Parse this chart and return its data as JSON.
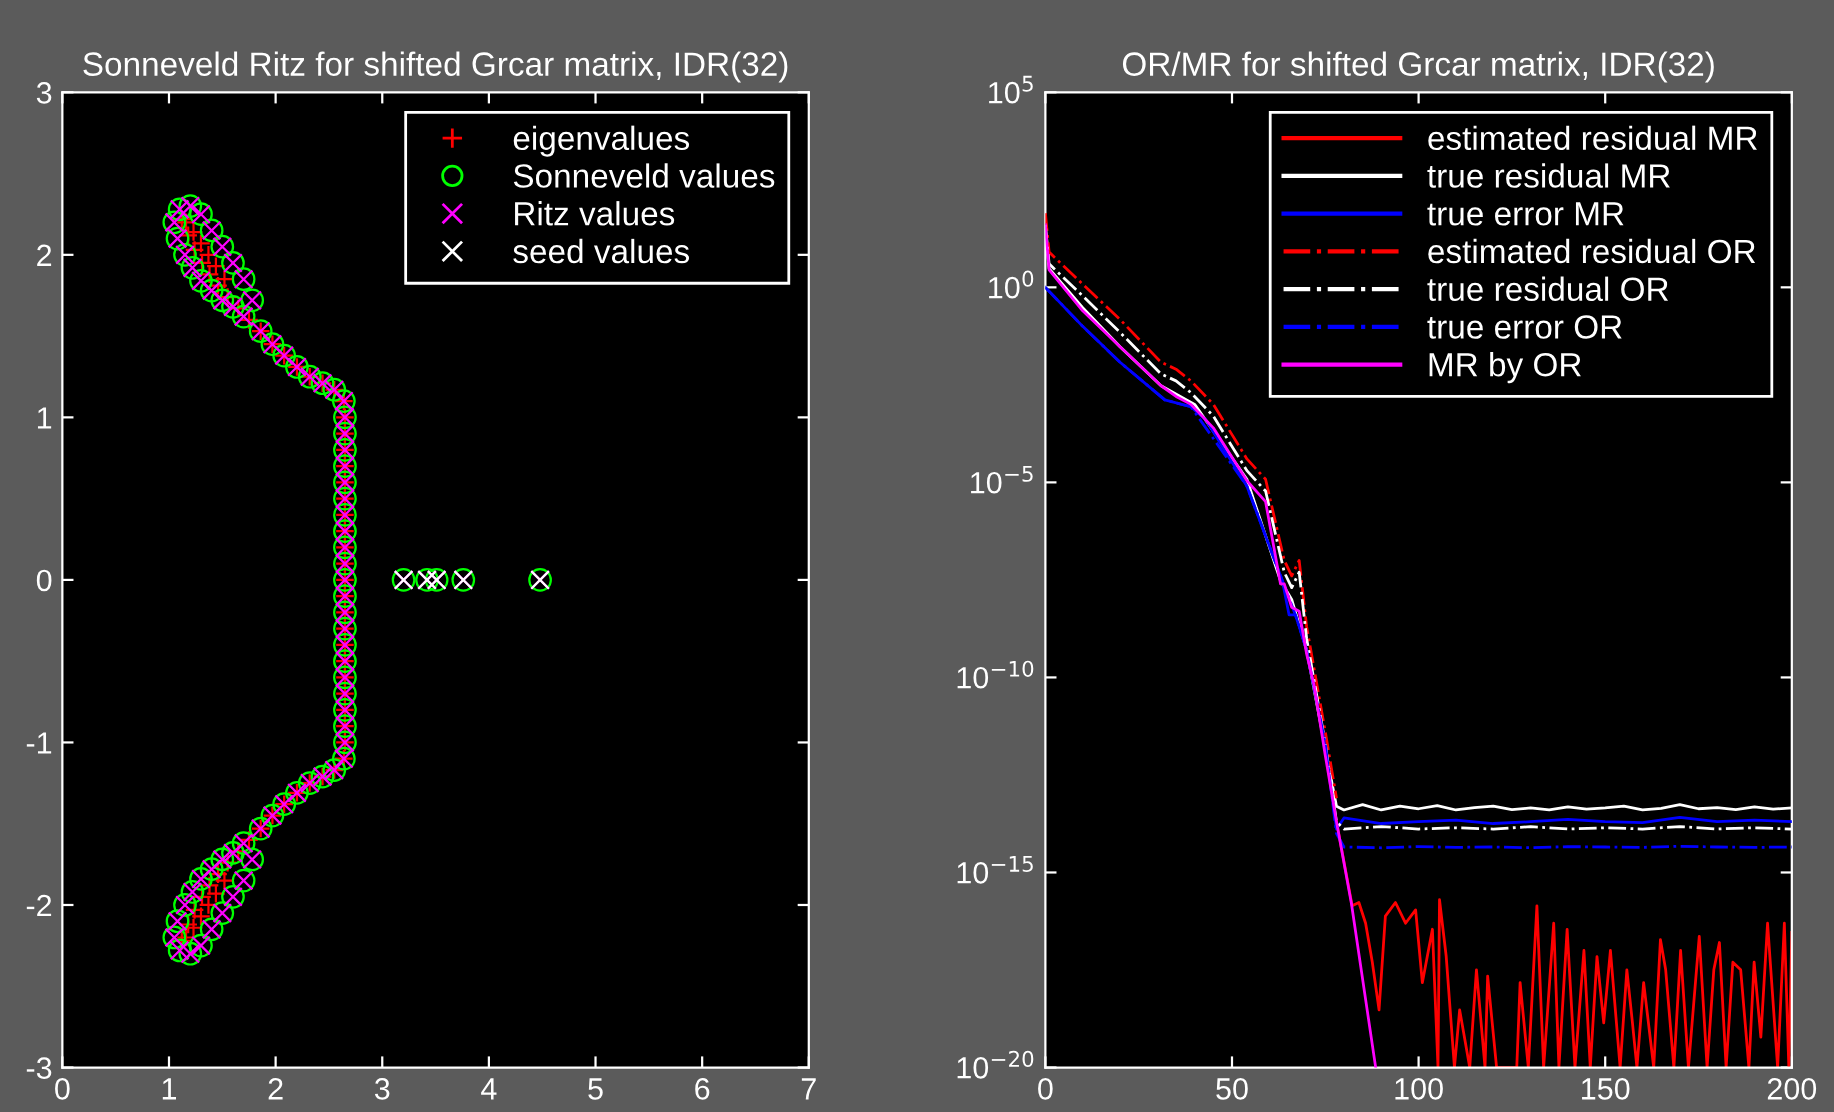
{
  "chart_data": [
    {
      "type": "scatter",
      "title": "Sonneveld Ritz for shifted Grcar matrix, IDR(32)",
      "xlim": [
        0,
        7
      ],
      "ylim": [
        -3,
        3
      ],
      "xticks": [
        0,
        1,
        2,
        3,
        4,
        5,
        6,
        7
      ],
      "yticks": [
        -3,
        -2,
        -1,
        0,
        1,
        2,
        3
      ],
      "grid": false,
      "legend": "top right",
      "series": [
        {
          "name": "eigenvalues",
          "color": "#ff0000",
          "marker": "plus",
          "x": [
            1.12,
            1.18,
            1.24,
            1.31,
            1.38,
            1.46,
            1.55,
            1.65,
            1.16,
            1.23,
            1.3,
            1.37,
            1.44,
            1.52,
            1.75,
            1.86,
            1.97,
            2.08,
            2.2,
            2.32,
            2.44,
            2.55,
            2.64,
            2.65,
            2.65,
            2.65,
            2.65,
            2.65,
            2.65,
            2.65,
            2.65,
            2.65,
            2.65,
            2.65,
            2.65,
            2.65,
            2.65,
            2.65,
            2.65,
            2.65,
            2.65,
            2.65,
            2.65,
            2.65,
            2.64,
            2.55,
            2.44,
            2.32,
            2.2,
            2.08,
            1.97,
            1.86,
            1.75,
            1.52,
            1.44,
            1.37,
            1.3,
            1.23,
            1.16,
            1.65,
            1.55,
            1.46,
            1.38,
            1.31,
            1.24,
            1.18,
            1.12
          ],
          "values": [
            2.22,
            2.12,
            2.03,
            1.95,
            1.88,
            1.81,
            1.74,
            1.67,
            2.2,
            2.14,
            2.07,
            2.0,
            1.93,
            1.85,
            1.6,
            1.53,
            1.45,
            1.38,
            1.31,
            1.25,
            1.21,
            1.17,
            1.1,
            1.0,
            0.9,
            0.8,
            0.7,
            0.6,
            0.5,
            0.4,
            0.3,
            0.2,
            0.1,
            0.0,
            -0.1,
            -0.2,
            -0.3,
            -0.4,
            -0.5,
            -0.6,
            -0.7,
            -0.8,
            -0.9,
            -1.0,
            -1.1,
            -1.17,
            -1.21,
            -1.25,
            -1.31,
            -1.38,
            -1.45,
            -1.53,
            -1.6,
            -1.85,
            -1.93,
            -2.0,
            -2.07,
            -2.14,
            -2.2,
            -1.67,
            -1.74,
            -1.81,
            -1.88,
            -1.95,
            -2.03,
            -2.12,
            -2.22
          ]
        },
        {
          "name": "Sonneveld values",
          "color": "#00ff00",
          "marker": "circle",
          "x": [
            1.1,
            1.05,
            1.08,
            1.15,
            1.22,
            1.3,
            1.4,
            1.5,
            1.6,
            1.7,
            1.2,
            1.3,
            1.4,
            1.5,
            1.6,
            1.7,
            1.78,
            1.86,
            1.97,
            2.08,
            2.2,
            2.32,
            2.44,
            2.55,
            2.64,
            2.65,
            2.65,
            2.65,
            2.65,
            2.65,
            2.65,
            2.65,
            2.65,
            2.65,
            2.65,
            2.65,
            2.65,
            2.65,
            2.65,
            2.65,
            2.65,
            2.65,
            2.65,
            2.65,
            2.65,
            2.65,
            2.64,
            2.55,
            2.44,
            2.32,
            2.2,
            2.08,
            1.97,
            1.86,
            1.78,
            1.7,
            1.6,
            1.5,
            1.4,
            1.3,
            1.2,
            1.7,
            1.6,
            1.5,
            1.4,
            1.3,
            1.22,
            1.15,
            1.08,
            1.05,
            1.1,
            3.2,
            3.42,
            3.51,
            3.76,
            4.48
          ],
          "values": [
            2.28,
            2.2,
            2.1,
            2.0,
            1.92,
            1.84,
            1.78,
            1.72,
            1.68,
            1.62,
            2.3,
            2.25,
            2.15,
            2.05,
            1.95,
            1.85,
            1.72,
            1.53,
            1.45,
            1.38,
            1.31,
            1.25,
            1.21,
            1.17,
            1.1,
            1.0,
            0.9,
            0.8,
            0.7,
            0.6,
            0.5,
            0.4,
            0.3,
            0.2,
            0.1,
            0.0,
            -0.1,
            -0.2,
            -0.3,
            -0.4,
            -0.5,
            -0.6,
            -0.7,
            -0.8,
            -0.9,
            -1.0,
            -1.1,
            -1.17,
            -1.21,
            -1.25,
            -1.31,
            -1.38,
            -1.45,
            -1.53,
            -1.72,
            -1.85,
            -1.95,
            -2.05,
            -2.15,
            -2.25,
            -2.3,
            -1.62,
            -1.68,
            -1.72,
            -1.78,
            -1.84,
            -1.92,
            -2.0,
            -2.1,
            -2.2,
            -2.28,
            0,
            0,
            0,
            0,
            0
          ]
        },
        {
          "name": "Ritz values",
          "color": "#ff00ff",
          "marker": "cross",
          "x": [
            1.1,
            1.05,
            1.08,
            1.15,
            1.22,
            1.3,
            1.4,
            1.5,
            1.6,
            1.7,
            1.2,
            1.3,
            1.4,
            1.5,
            1.6,
            1.7,
            1.78,
            1.86,
            1.97,
            2.08,
            2.2,
            2.32,
            2.44,
            2.55,
            2.64,
            2.65,
            2.65,
            2.65,
            2.65,
            2.65,
            2.65,
            2.65,
            2.65,
            2.65,
            2.65,
            2.65,
            2.65,
            2.65,
            2.65,
            2.65,
            2.65,
            2.65,
            2.65,
            2.65,
            2.65,
            2.65,
            2.64,
            2.55,
            2.44,
            2.32,
            2.2,
            2.08,
            1.97,
            1.86,
            1.78,
            1.7,
            1.6,
            1.5,
            1.4,
            1.3,
            1.2,
            1.7,
            1.6,
            1.5,
            1.4,
            1.3,
            1.22,
            1.15,
            1.08,
            1.05,
            1.1,
            3.2,
            3.42,
            3.51,
            3.76,
            4.48
          ],
          "values": [
            2.28,
            2.2,
            2.1,
            2.0,
            1.92,
            1.84,
            1.78,
            1.72,
            1.68,
            1.62,
            2.3,
            2.25,
            2.15,
            2.05,
            1.95,
            1.85,
            1.72,
            1.53,
            1.45,
            1.38,
            1.31,
            1.25,
            1.21,
            1.17,
            1.1,
            1.0,
            0.9,
            0.8,
            0.7,
            0.6,
            0.5,
            0.4,
            0.3,
            0.2,
            0.1,
            0.0,
            -0.1,
            -0.2,
            -0.3,
            -0.4,
            -0.5,
            -0.6,
            -0.7,
            -0.8,
            -0.9,
            -1.0,
            -1.1,
            -1.17,
            -1.21,
            -1.25,
            -1.31,
            -1.38,
            -1.45,
            -1.53,
            -1.72,
            -1.85,
            -1.95,
            -2.05,
            -2.15,
            -2.25,
            -2.3,
            -1.62,
            -1.68,
            -1.72,
            -1.78,
            -1.84,
            -1.92,
            -2.0,
            -2.1,
            -2.2,
            -2.28,
            0,
            0,
            0,
            0,
            0
          ]
        },
        {
          "name": "seed values",
          "color": "#ffffff",
          "marker": "cross",
          "x": [
            3.2,
            3.42,
            3.51,
            3.76,
            4.48
          ],
          "values": [
            0,
            0,
            0,
            0,
            0
          ]
        }
      ]
    },
    {
      "type": "line",
      "title": "OR/MR for shifted Grcar matrix, IDR(32)",
      "log": "y",
      "xlim": [
        0,
        200
      ],
      "ylim": [
        1e-20,
        100000.0
      ],
      "xticks": [
        0,
        50,
        100,
        150,
        200
      ],
      "yticks": [
        {
          "value": 100000.0,
          "label": "10$^{5}$"
        },
        {
          "value": 1,
          "label": "10$^{0}$"
        },
        {
          "value": 1e-05,
          "label": "10$^{−5}$"
        },
        {
          "value": 1e-10,
          "label": "10$^{−10}$"
        },
        {
          "value": 1e-15,
          "label": "10$^{−15}$"
        },
        {
          "value": 1e-20,
          "label": "10$^{−20}$"
        }
      ],
      "grid": false,
      "legend": "top right",
      "marker": "none",
      "series": [
        {
          "name": "estimated residual MR",
          "color": "#ff0000",
          "line_style": "solid",
          "x": [
            78,
            82.2,
            84,
            85.8,
            87.6,
            89.4,
            91.1,
            93.8,
            96.5,
            99.2,
            101,
            103.7,
            105.2,
            105.6,
            107.4,
            109.6,
            111,
            113.7,
            115.5,
            117.8,
            118.5,
            120.9,
            123.6,
            126.3,
            127.2,
            129.4,
            131.7,
            133.5,
            136.2,
            137.6,
            139.8,
            141.9,
            144.3,
            146,
            147.8,
            149.6,
            151.4,
            154,
            155.8,
            157.3,
            158.5,
            160.3,
            163,
            164.8,
            166.2,
            168.4,
            170.2,
            172.3,
            175.2,
            177.3,
            179.1,
            180.6,
            182.4,
            184.2,
            186.3,
            188.5,
            189.9,
            191.7,
            193.5,
            196.2,
            198,
            199.2,
            200
          ],
          "values": [
            2e-14,
            1.4e-16,
            1.7e-16,
            5e-17,
            5e-18,
            3e-19,
            7.6e-17,
            1.7e-16,
            5e-17,
            1.1e-16,
            1.5e-18,
            3.5e-17,
            1e-20,
            2e-16,
            7e-18,
            1e-20,
            3e-19,
            1e-20,
            3.2e-18,
            1e-20,
            2.2e-18,
            1e-20,
            1e-20,
            1e-20,
            1.5e-18,
            1e-20,
            1.4e-16,
            1e-20,
            5e-17,
            1e-20,
            3.5e-17,
            1e-20,
            1e-17,
            1e-20,
            7e-18,
            1.4e-19,
            1e-17,
            1e-20,
            3.2e-18,
            1.4e-19,
            1e-20,
            1.5e-18,
            1e-20,
            1.9e-17,
            3.2e-18,
            1e-20,
            1e-17,
            1e-20,
            2.3e-17,
            1e-20,
            3.2e-18,
            1.6e-17,
            1e-20,
            5e-18,
            3.2e-18,
            1e-20,
            5e-18,
            6e-20,
            5e-17,
            1e-20,
            5e-17,
            1e-20,
            2.9e-17
          ]
        },
        {
          "name": "true residual MR",
          "color": "#ffffff",
          "line_style": "solid",
          "x": [
            0,
            1,
            10,
            20,
            31,
            40,
            54,
            63,
            66,
            70,
            75,
            78,
            80,
            85,
            90,
            95,
            100,
            105,
            110,
            115,
            120,
            125,
            130,
            135,
            140,
            145,
            150,
            155,
            160,
            165,
            170,
            175,
            180,
            185,
            190,
            195,
            200
          ],
          "values": [
            30,
            3,
            0.3,
            0.03,
            0.003,
            0.001,
            1.2e-05,
            3e-08,
            1e-08,
            5e-10,
            1.5e-12,
            5e-14,
            4e-14,
            5.5e-14,
            4e-14,
            5e-14,
            4.3e-14,
            5.2e-14,
            4e-14,
            4.6e-14,
            5e-14,
            4.1e-14,
            4.5e-14,
            4e-14,
            4.8e-14,
            4.2e-14,
            4.5e-14,
            5e-14,
            4e-14,
            4.4e-14,
            5.5e-14,
            4.3e-14,
            4.6e-14,
            4.1e-14,
            4.8e-14,
            4.2e-14,
            4.5e-14
          ]
        },
        {
          "name": "true error MR",
          "color": "#0000ff",
          "line_style": "solid",
          "x": [
            0,
            10,
            20,
            32,
            39,
            43,
            54,
            63.5,
            65.3,
            67,
            70,
            75,
            78,
            80,
            90,
            100,
            110,
            120,
            130,
            140,
            150,
            160,
            170,
            180,
            190,
            200
          ],
          "values": [
            1,
            0.1,
            0.012,
            0.0013,
            0.00087,
            0.0004,
            8e-06,
            3e-08,
            4e-09,
            4e-09,
            5e-10,
            2e-12,
            1.3e-14,
            2.5e-14,
            1.8e-14,
            2e-14,
            2.2e-14,
            1.8e-14,
            2e-14,
            2.3e-14,
            2e-14,
            1.9e-14,
            2.6e-14,
            2e-14,
            2.2e-14,
            2e-14
          ]
        },
        {
          "name": "estimated residual OR",
          "color": "#ff0000",
          "line_style": "dashdot",
          "x": [
            0,
            1,
            10,
            20,
            31,
            35,
            39,
            45,
            54,
            59,
            64,
            66,
            68,
            70,
            75,
            78
          ],
          "values": [
            80,
            8,
            1.2,
            0.15,
            0.012,
            0.008,
            0.004,
            0.001,
            4e-05,
            1.2e-05,
            1e-07,
            4e-08,
            1e-07,
            2e-09,
            4e-12,
            8e-14
          ]
        },
        {
          "name": "true residual OR",
          "color": "#ffffff",
          "line_style": "dashdot",
          "x": [
            0,
            1,
            10,
            20,
            31,
            35,
            39,
            45,
            54,
            59,
            64,
            66,
            68,
            70,
            75,
            78,
            80,
            90,
            100,
            110,
            120,
            130,
            140,
            150,
            160,
            170,
            180,
            190,
            200
          ],
          "values": [
            40,
            4,
            0.6,
            0.07,
            0.006,
            0.004,
            0.002,
            0.0005,
            2e-05,
            6e-06,
            5e-08,
            2e-08,
            5e-08,
            1e-09,
            2e-12,
            2e-14,
            1.3e-14,
            1.5e-14,
            1.3e-14,
            1.4e-14,
            1.3e-14,
            1.5e-14,
            1.3e-14,
            1.4e-14,
            1.3e-14,
            1.5e-14,
            1.3e-14,
            1.4e-14,
            1.3e-14
          ]
        },
        {
          "name": "true error OR",
          "color": "#0000ff",
          "line_style": "dashdot",
          "x": [
            0,
            10,
            20,
            32,
            39,
            54,
            63.5,
            67,
            70,
            75,
            78,
            80,
            90,
            100,
            110,
            120,
            130,
            140,
            150,
            160,
            170,
            180,
            190,
            200
          ],
          "values": [
            1,
            0.1,
            0.012,
            0.0013,
            0.00087,
            8e-06,
            3e-08,
            4e-09,
            5e-10,
            2e-12,
            1e-14,
            4.5e-15,
            4.3e-15,
            4.6e-15,
            4.4e-15,
            4.5e-15,
            4.3e-15,
            4.6e-15,
            4.5e-15,
            4.4e-15,
            4.7e-15,
            4.5e-15,
            4.4e-15,
            4.5e-15
          ]
        },
        {
          "name": "MR by OR",
          "color": "#ff00ff",
          "line_style": "solid",
          "x": [
            0,
            1,
            10,
            20,
            31,
            35,
            39,
            45,
            54,
            59,
            63,
            64,
            66,
            68,
            70,
            72,
            75,
            78,
            82,
            88.5
          ],
          "values": [
            40,
            2.8,
            0.25,
            0.03,
            0.003,
            0.0016,
            0.001,
            0.00025,
            1.1e-05,
            3.2e-06,
            2.5e-08,
            2.5e-08,
            6.3e-09,
            5e-09,
            4e-10,
            6.3e-11,
            1e-12,
            2e-14,
            1.6e-16,
            1e-20
          ]
        }
      ]
    }
  ]
}
